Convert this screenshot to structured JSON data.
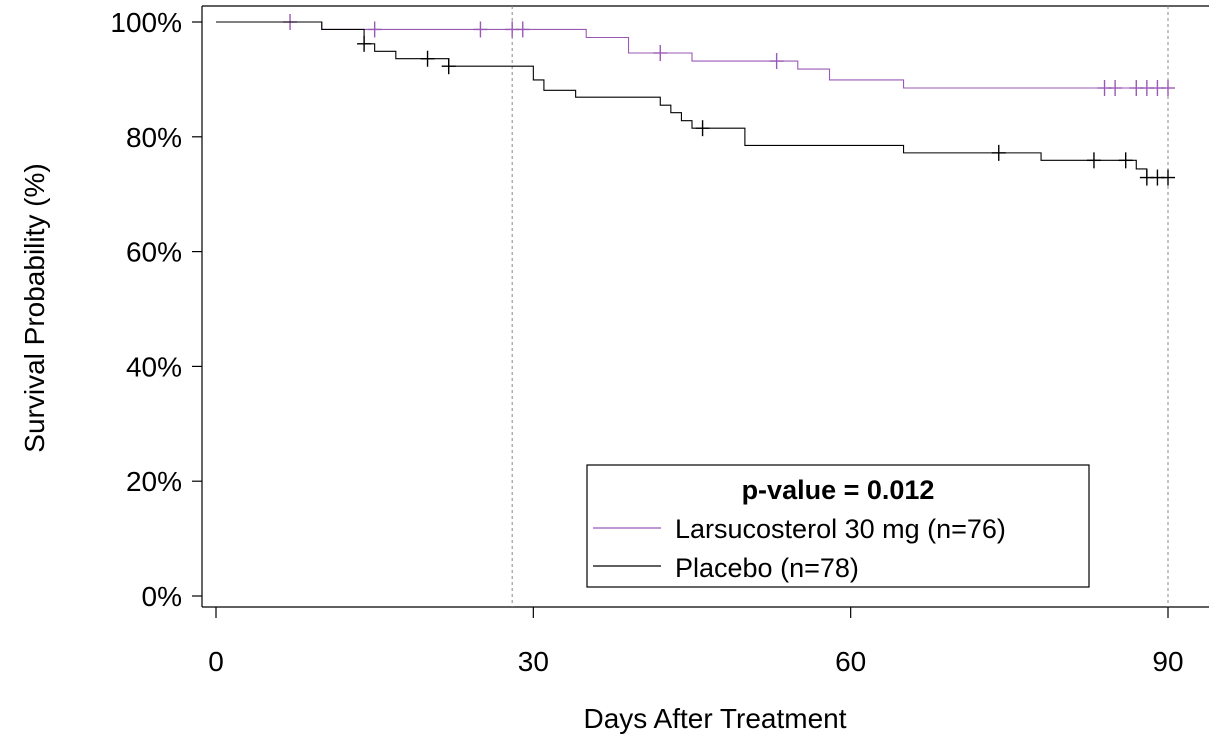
{
  "chart_data": {
    "type": "line",
    "subtype": "kaplan-meier",
    "title": "",
    "xlabel": "Days After Treatment",
    "ylabel": "Survival Probability (%)",
    "xlim": [
      0,
      90
    ],
    "ylim": [
      0,
      100
    ],
    "x_ticks": [
      0,
      30,
      60,
      90
    ],
    "x_tick_labels": [
      "0",
      "30",
      "60",
      "90"
    ],
    "y_ticks": [
      0,
      20,
      40,
      60,
      80,
      100
    ],
    "y_tick_labels": [
      "0%",
      "20%",
      "40%",
      "60%",
      "80%",
      "100%"
    ],
    "reference_lines_x": [
      28,
      90
    ],
    "grid": false,
    "legend": {
      "position": "bottom-right",
      "title": "p-value = 0.012"
    },
    "series": [
      {
        "name": "Larsucosterol 30 mg (n=76)",
        "color": "#9b59b6",
        "steps": [
          [
            0,
            100
          ],
          [
            10,
            98.7
          ],
          [
            35,
            97.3
          ],
          [
            39,
            94.6
          ],
          [
            45,
            93.2
          ],
          [
            55,
            91.8
          ],
          [
            58,
            89.9
          ],
          [
            65,
            88.5
          ],
          [
            90,
            88.5
          ]
        ],
        "censored": [
          [
            7,
            100
          ],
          [
            15,
            98.7
          ],
          [
            25,
            98.7
          ],
          [
            28,
            98.7
          ],
          [
            29,
            98.7
          ],
          [
            42,
            94.6
          ],
          [
            53,
            93.2
          ],
          [
            84,
            88.5
          ],
          [
            85,
            88.5
          ],
          [
            87,
            88.5
          ],
          [
            88,
            88.5
          ],
          [
            89,
            88.5
          ],
          [
            90,
            88.5
          ]
        ]
      },
      {
        "name": "Placebo (n=78)",
        "color": "#000000",
        "steps": [
          [
            0,
            100
          ],
          [
            10,
            98.7
          ],
          [
            14,
            96.2
          ],
          [
            15,
            94.9
          ],
          [
            17,
            93.6
          ],
          [
            22,
            92.3
          ],
          [
            30,
            89.9
          ],
          [
            31,
            88.1
          ],
          [
            34,
            86.9
          ],
          [
            38,
            86.9
          ],
          [
            42,
            85.5
          ],
          [
            43,
            84.2
          ],
          [
            44,
            82.8
          ],
          [
            45,
            81.5
          ],
          [
            50,
            78.5
          ],
          [
            65,
            77.2
          ],
          [
            78,
            75.9
          ],
          [
            87,
            74.4
          ],
          [
            88,
            72.9
          ],
          [
            90,
            72.9
          ]
        ],
        "censored": [
          [
            14,
            96.2
          ],
          [
            20,
            93.6
          ],
          [
            22,
            92.3
          ],
          [
            46,
            81.5
          ],
          [
            74,
            77.2
          ],
          [
            83,
            75.9
          ],
          [
            86,
            75.9
          ],
          [
            88,
            72.9
          ],
          [
            89,
            72.9
          ],
          [
            90,
            72.9
          ]
        ]
      }
    ]
  }
}
